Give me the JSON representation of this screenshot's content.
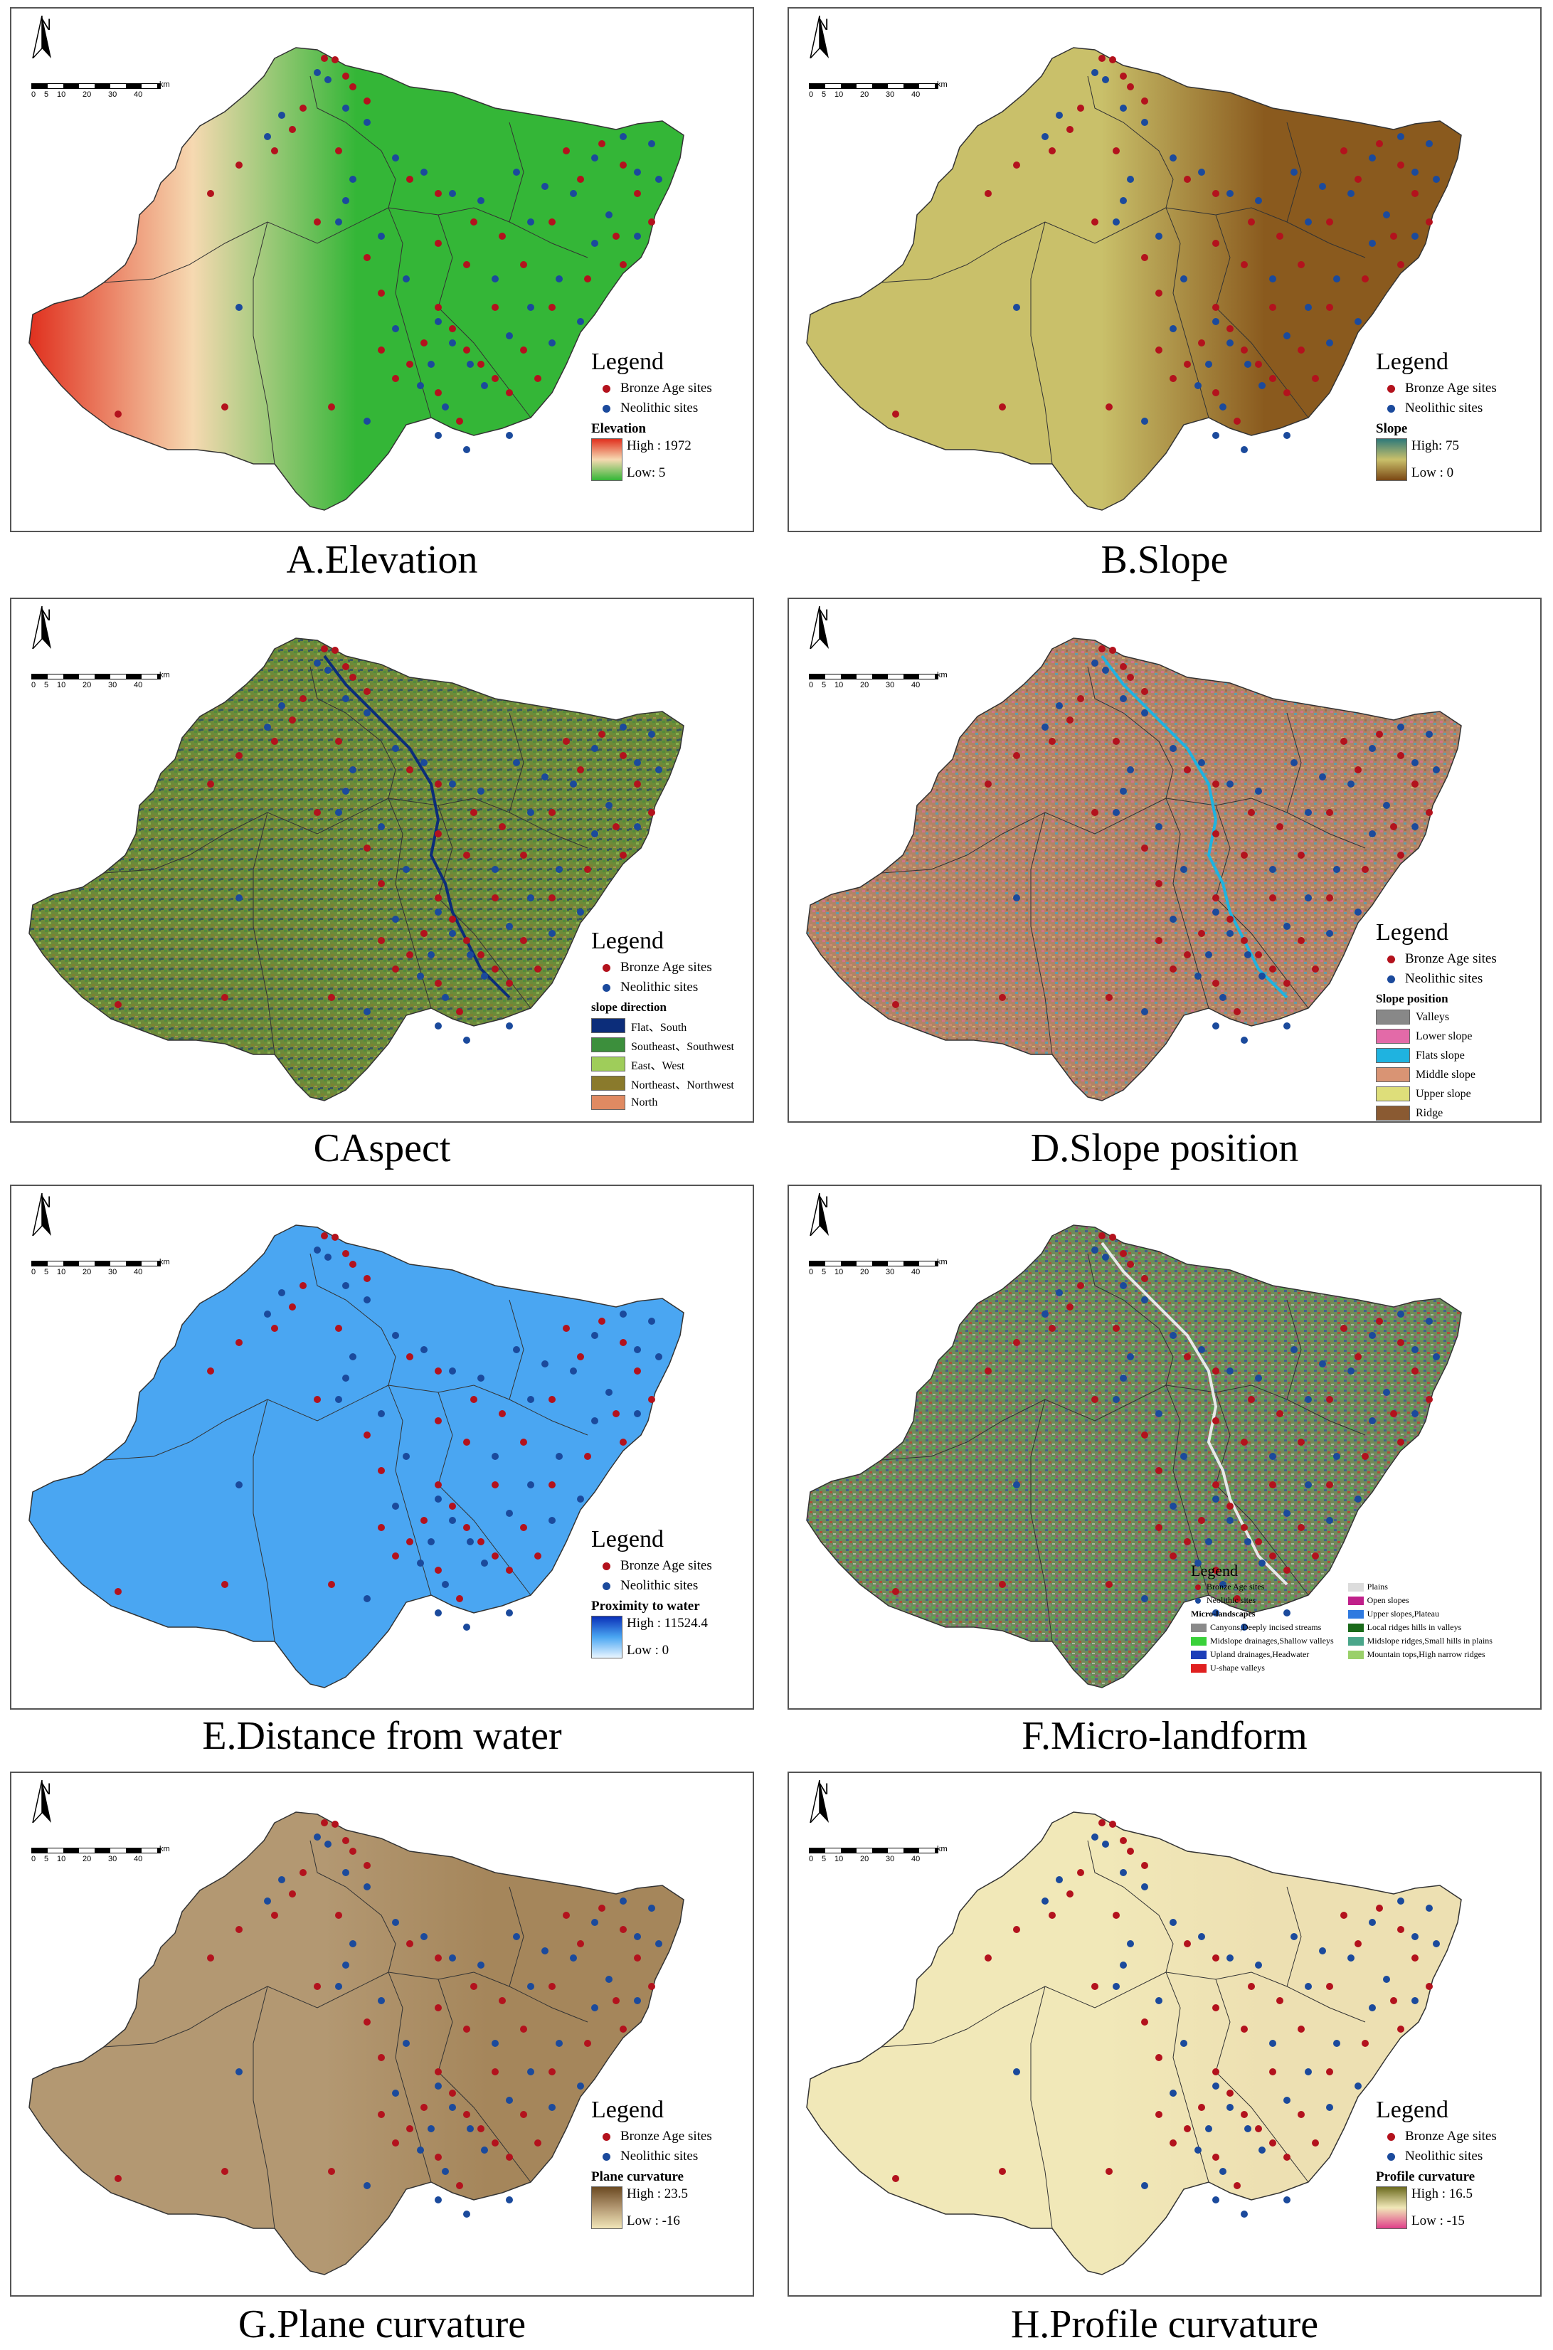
{
  "panels": [
    {
      "id": "A",
      "caption": "A.Elevation",
      "map_fill": "#3fb83a",
      "fill_id": "grad-elev",
      "legend_title": "Legend",
      "bronze_label": "Bronze Age sites",
      "neolithic_label": "Neolithic sites",
      "ramp_title": "Elevation",
      "ramp_high": "High : 1972",
      "ramp_low": "Low: 5",
      "ramp_colors": [
        "#e0301e",
        "#f6d9b1",
        "#34b637"
      ]
    },
    {
      "id": "B",
      "caption": "B.Slope",
      "map_fill": "#8a5a1e",
      "fill_id": "grad-slope",
      "legend_title": "Legend",
      "bronze_label": "Bronze Age sites",
      "neolithic_label": "Neolithic sites",
      "ramp_title": "Slope",
      "ramp_high": "High: 75",
      "ramp_low": "Low : 0",
      "ramp_colors": [
        "#2f7a7a",
        "#c9c06a",
        "#7a4713"
      ]
    },
    {
      "id": "C",
      "caption": "CAspect",
      "map_fill": "#6d8a3a",
      "fill_id": "grad-aspect",
      "legend_title": "Legend",
      "bronze_label": "Bronze Age sites",
      "neolithic_label": "Neolithic sites",
      "cat_title": "slope direction",
      "categories": [
        {
          "label": "Flat、South",
          "color": "#0c2d7a"
        },
        {
          "label": "Southeast、Southwest",
          "color": "#3c8f3c"
        },
        {
          "label": "East、West",
          "color": "#9fcd5a"
        },
        {
          "label": "Northeast、Northwest",
          "color": "#8a7a2c"
        },
        {
          "label": "North",
          "color": "#e08a62"
        }
      ]
    },
    {
      "id": "D",
      "caption": "D.Slope position",
      "map_fill": "#b38366",
      "fill_id": "grad-pos",
      "legend_title": "Legend",
      "bronze_label": "Bronze Age sites",
      "neolithic_label": "Neolithic sites",
      "cat_title": "Slope position",
      "categories": [
        {
          "label": "Valleys",
          "color": "#888888"
        },
        {
          "label": "Lower slope",
          "color": "#e36aa8"
        },
        {
          "label": "Flats slope",
          "color": "#1fb3e0"
        },
        {
          "label": "Middle slope",
          "color": "#d99474"
        },
        {
          "label": "Upper slope",
          "color": "#dede7a"
        },
        {
          "label": "Ridge",
          "color": "#8a5a32"
        }
      ]
    },
    {
      "id": "E",
      "caption": "E.Distance from water",
      "map_fill": "#4aa6f2",
      "fill_id": "grad-water",
      "legend_title": "Legend",
      "bronze_label": "Bronze Age sites",
      "neolithic_label": "Neolithic sites",
      "ramp_title": "Proximity to water",
      "ramp_high": "High : 11524.4",
      "ramp_low": "Low : 0",
      "ramp_colors": [
        "#0a2fb8",
        "#4aa6f2",
        "#e8f5ff"
      ]
    },
    {
      "id": "F",
      "caption": "F.Micro-landform",
      "map_fill": "#6f8a5a",
      "fill_id": "grad-micro",
      "legend_title": "Legend",
      "bronze_label": "Bronze Age sites",
      "neolithic_label": "Neolithic sites",
      "cat_title": "Micro-landscapes",
      "categories_left": [
        {
          "label": "Canyons,Deeply incised streams",
          "color": "#8a8a8a"
        },
        {
          "label": "Midslope drainages,Shallow valleys",
          "color": "#3ad13a"
        },
        {
          "label": "Upland drainages,Headwater",
          "color": "#1e3fb8"
        },
        {
          "label": "U-shape valleys",
          "color": "#e02020"
        }
      ],
      "categories_right": [
        {
          "label": "Plains",
          "color": "#dcdcdc"
        },
        {
          "label": "Open slopes",
          "color": "#c0208a"
        },
        {
          "label": "Upper slopes,Plateau",
          "color": "#2f7ae0"
        },
        {
          "label": "Local ridges hills in valleys",
          "color": "#1a6a1a"
        },
        {
          "label": "Midslope ridges,Small hills in plains",
          "color": "#4aa68a"
        },
        {
          "label": "Mountain tops,High narrow ridges",
          "color": "#9ad06a"
        }
      ]
    },
    {
      "id": "G",
      "caption": "G.Plane curvature",
      "map_fill": "#a5865b",
      "fill_id": "grad-plane",
      "legend_title": "Legend",
      "bronze_label": "Bronze Age sites",
      "neolithic_label": "Neolithic sites",
      "ramp_title": "Plane curvature",
      "ramp_high": "High : 23.5",
      "ramp_low": "Low : -16",
      "ramp_colors": [
        "#6b4a22",
        "#b39872",
        "#f1e6b8"
      ]
    },
    {
      "id": "H",
      "caption": "H.Profile curvature",
      "map_fill": "#ede0b2",
      "fill_id": "grad-profile",
      "legend_title": "Legend",
      "bronze_label": "Bronze Age sites",
      "neolithic_label": "Neolithic sites",
      "ramp_title": "Profile curvature",
      "ramp_high": "High : 16.5",
      "ramp_low": "Low : -15",
      "ramp_colors": [
        "#6b6a1e",
        "#f1e8b8",
        "#e0408a"
      ]
    }
  ],
  "map_common": {
    "north_letter": "N",
    "scale_ticks": [
      "0",
      "5",
      "10",
      "20",
      "30",
      "40"
    ],
    "scale_unit": "km"
  }
}
